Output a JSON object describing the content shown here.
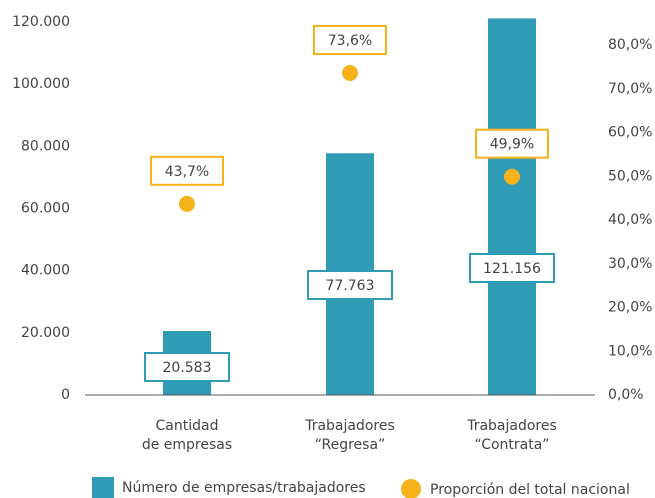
{
  "chart_data": {
    "type": "bar",
    "categories": [
      "Cantidad\nde empresas",
      "Trabajadores\n“Regresa”",
      "Trabajadores\n“Contrata”"
    ],
    "series": [
      {
        "name": "Número de empresas/trabajadores",
        "color": "#2f9bb4",
        "values": [
          20583,
          77763,
          121156
        ],
        "value_labels": [
          "20.583",
          "77.763",
          "121.156"
        ]
      },
      {
        "name": "Proporción del total nacional",
        "color": "#f5b21a",
        "axis": "y2",
        "values": [
          43.7,
          73.6,
          49.9
        ],
        "value_labels": [
          "43,7%",
          "73,6%",
          "49,9%"
        ]
      }
    ],
    "ylim": [
      0,
      120000
    ],
    "yticks": [
      0,
      {
        "value": 20000,
        "label": "20.000"
      },
      {
        "value": 40000,
        "label": "40.000"
      },
      {
        "value": 60000,
        "label": "60.000"
      },
      {
        "value": 80000,
        "label": "80.000"
      },
      {
        "value": 100000,
        "label": "100.000"
      },
      {
        "value": 120000,
        "label": "120.000"
      }
    ],
    "y2lim": [
      0,
      80
    ],
    "y2ticks": [
      {
        "value": 0,
        "label": "0,0%"
      },
      {
        "value": 10,
        "label": "10,0%"
      },
      {
        "value": 20,
        "label": "20,0%"
      },
      {
        "value": 30,
        "label": "30,0%"
      },
      {
        "value": 40,
        "label": "40,0%"
      },
      {
        "value": 50,
        "label": "50,0%"
      },
      {
        "value": 60,
        "label": "60,0%"
      },
      {
        "value": 70,
        "label": "70,0%"
      },
      {
        "value": 80,
        "label": "80,0%"
      }
    ],
    "grid": false
  }
}
